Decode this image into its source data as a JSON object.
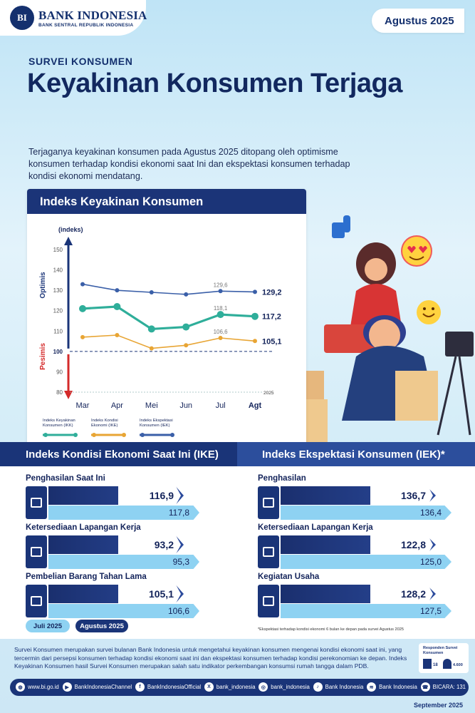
{
  "header": {
    "logo_mark": "BI",
    "org_name": "BANK INDONESIA",
    "org_sub": "BANK SENTRAL REPUBLIK INDONESIA",
    "period": "Agustus 2025"
  },
  "kicker": "SURVEI KONSUMEN",
  "title": "Keyakinan Konsumen Terjaga",
  "lead": "Terjaganya keyakinan konsumen pada Agustus 2025 ditopang oleh optimisme konsumen terhadap kondisi ekonomi saat Ini dan ekspektasi konsumen terhadap kondisi ekonomi mendatang.",
  "chart_title": "Indeks Keyakinan Konsumen",
  "chart_data": {
    "type": "line",
    "ylabel": "(indeks)",
    "ylim": [
      80,
      150
    ],
    "yticks": [
      150,
      140,
      130,
      120,
      110,
      100,
      90,
      80
    ],
    "baseline": 100,
    "optimis_label": "Optimis",
    "pesimis_label": "Pesimis",
    "year_label": "2025",
    "categories": [
      "Mar",
      "Apr",
      "Mei",
      "Jun",
      "Jul",
      "Agt"
    ],
    "series": [
      {
        "name": "Indeks Ekspektasi Konsumen (IEK)",
        "color": "#3a5fa8",
        "values": [
          133,
          130,
          129,
          128,
          129.6,
          129.2
        ]
      },
      {
        "name": "Indeks Keyakinan Konsumen (IKK)",
        "color": "#2fae9a",
        "values": [
          121,
          122,
          111,
          112,
          118.1,
          117.2
        ]
      },
      {
        "name": "Indeks Kondisi Ekonomi (IKE)",
        "color": "#e8a534",
        "values": [
          107,
          108,
          101.5,
          103,
          106.6,
          105.1
        ]
      }
    ],
    "annotations": {
      "jul": [
        "129,6",
        "118,1",
        "106,6"
      ],
      "agt": [
        "129,2",
        "117,2",
        "105,1"
      ]
    },
    "legend": [
      {
        "label1": "Indeks Keyakinan",
        "label2": "Konsumen (IKK)",
        "color": "#2fae9a"
      },
      {
        "label1": "Indeks Kondisi",
        "label2": "Ekonomi (IKE)",
        "color": "#e8a534"
      },
      {
        "label1": "Indeks Ekspektasi",
        "label2": "Konsumen (IEK)",
        "color": "#3a5fa8"
      }
    ]
  },
  "ike": {
    "title": "Indeks Kondisi Ekonomi Saat Ini (IKE)",
    "items": [
      {
        "label": "Penghasilan Saat Ini",
        "current": "116,9",
        "previous": "117,8"
      },
      {
        "label": "Ketersediaan Lapangan Kerja",
        "current": "93,2",
        "previous": "95,3"
      },
      {
        "label": "Pembelian Barang Tahan Lama",
        "current": "105,1",
        "previous": "106,6"
      }
    ],
    "legend_prev": "Juli 2025",
    "legend_curr": "Agustus 2025"
  },
  "iek": {
    "title": "Indeks Ekspektasi Konsumen (IEK)*",
    "items": [
      {
        "label": "Penghasilan",
        "current": "136,7",
        "previous": "136,4"
      },
      {
        "label": "Ketersediaan Lapangan Kerja",
        "current": "122,8",
        "previous": "125,0"
      },
      {
        "label": "Kegiatan Usaha",
        "current": "128,2",
        "previous": "127,5"
      }
    ],
    "footnote": "*Ekspektasi terhadap kondisi ekonomi 6 bulan ke depan pada survei Agustus 2025"
  },
  "footer": {
    "note": "Survei Konsumen merupakan survei bulanan Bank Indonesia untuk mengetahui keyakinan konsumen mengenai kondisi ekonomi saat ini, yang tercermin dari persepsi konsumen terhadap kondisi ekonomi saat ini dan ekspektasi konsumen terhadap kondisi perekonomian ke depan. Indeks Keyakinan Konsumen hasil Survei Konsumen merupakan salah satu indikator perkembangan konsumsi rumah tangga dalam PDB.",
    "respondent_title": "Responden Survei Konsumen",
    "respondent_cities": "18",
    "respondent_count": "4.600",
    "social": [
      {
        "icon": "globe-icon",
        "label": "www.bi.go.id"
      },
      {
        "icon": "youtube-icon",
        "label": "BankIndonesiaChannel"
      },
      {
        "icon": "facebook-icon",
        "label": "BankIndonesiaOfficial"
      },
      {
        "icon": "twitter-icon",
        "label": "bank_indonesia"
      },
      {
        "icon": "instagram-icon",
        "label": "bank_indonesia"
      },
      {
        "icon": "tiktok-icon",
        "label": "Bank Indonesia"
      },
      {
        "icon": "spotify-icon",
        "label": "Bank Indonesia"
      },
      {
        "icon": "bicara-icon",
        "label": "BICARA: 131"
      }
    ],
    "release": "September 2025"
  },
  "colors": {
    "navy": "#1a3478",
    "light_bar": "#8ed2f2",
    "ikk": "#2fae9a",
    "ike": "#e8a534",
    "iek": "#3a5fa8",
    "pesimis": "#d42a2a"
  }
}
